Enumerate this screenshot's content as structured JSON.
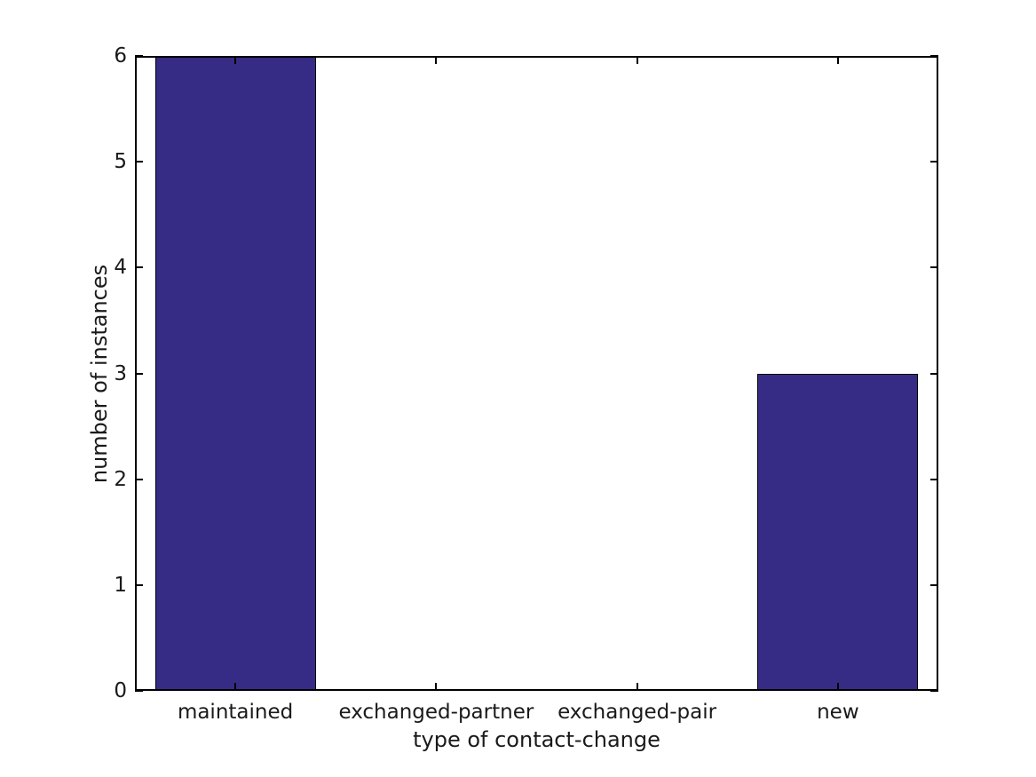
{
  "chart_data": {
    "type": "bar",
    "categories": [
      "maintained",
      "exchanged-partner",
      "exchanged-pair",
      "new"
    ],
    "values": [
      6,
      0,
      0,
      3
    ],
    "title": "",
    "xlabel": "type of contact-change",
    "ylabel": "number of instances",
    "ylim": [
      0,
      6
    ],
    "yticks": [
      0,
      1,
      2,
      3,
      4,
      5,
      6
    ],
    "bar_width_fraction": 0.8,
    "bar_color": "#362c86",
    "bar_edge_color": "#000000",
    "axis_color": "#000000",
    "text_color": "#1a1a1a",
    "background_color": "#ffffff",
    "grid": false,
    "legend": "none",
    "tick_direction": "in",
    "box": true
  }
}
